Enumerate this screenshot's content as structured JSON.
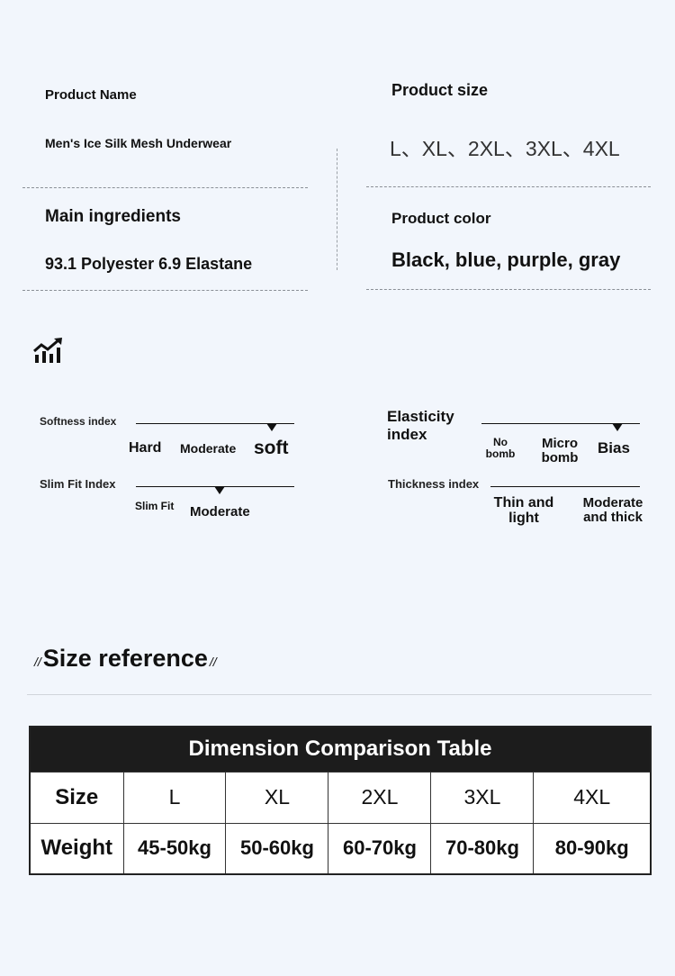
{
  "info": {
    "product_name_label": "Product Name",
    "product_name": "Men's Ice Silk Mesh Underwear",
    "product_size_label": "Product size",
    "product_size": "L、XL、2XL、3XL、4XL",
    "ingredients_label": "Main ingredients",
    "ingredients": "93.1 Polyester 6.9 Elastane",
    "color_label": "Product color",
    "color": "Black, blue, purple, gray"
  },
  "indices": {
    "chart_icon": "trending-up-bars-icon",
    "softness": {
      "label": "Softness index",
      "options": [
        "Hard",
        "Moderate",
        "soft"
      ],
      "selected": "soft"
    },
    "slim_fit": {
      "label": "Slim Fit Index",
      "options": [
        "Slim Fit",
        "Moderate"
      ],
      "selected": "Moderate"
    },
    "elasticity": {
      "label": "Elasticity index",
      "options": [
        "No bomb",
        "Micro bomb",
        "Bias"
      ],
      "selected": "Bias"
    },
    "thickness": {
      "label": "Thickness index",
      "options": [
        "Thin and light",
        "Moderate and thick"
      ]
    }
  },
  "size_reference": {
    "title": "Size reference",
    "table_title": "Dimension Comparison Table",
    "rows": [
      {
        "header": "Size",
        "values": [
          "L",
          "XL",
          "2XL",
          "3XL",
          "4XL"
        ]
      },
      {
        "header": "Weight",
        "values": [
          "45-50kg",
          "50-60kg",
          "60-70kg",
          "70-80kg",
          "80-90kg"
        ]
      }
    ]
  }
}
